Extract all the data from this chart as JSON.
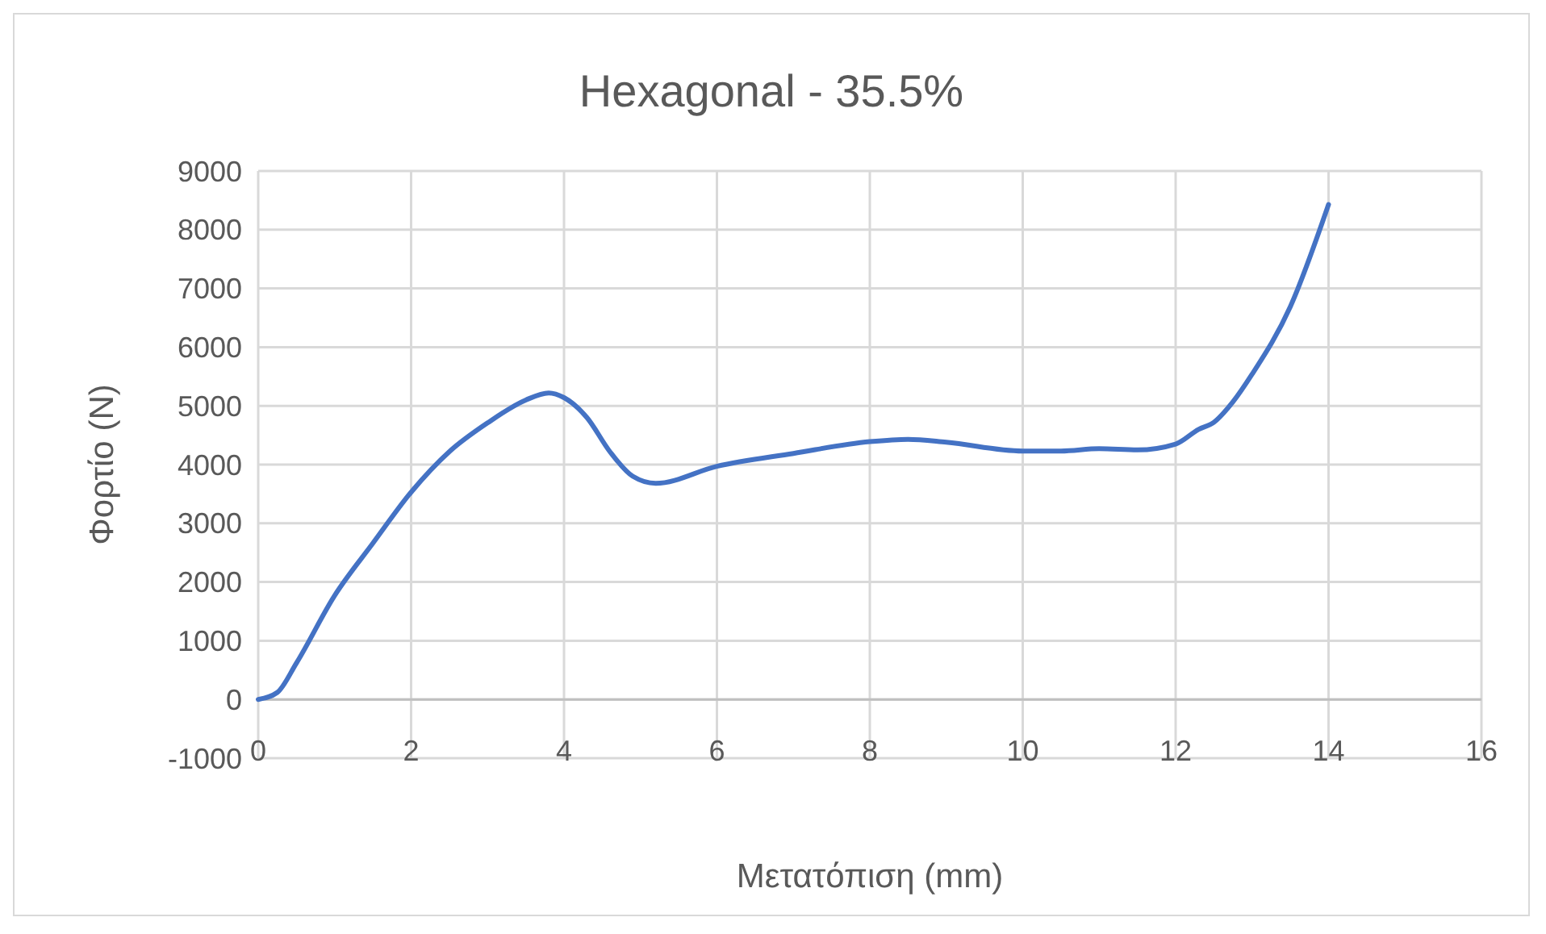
{
  "chart_data": {
    "type": "line",
    "title": "Hexagonal - 35.5%",
    "xlabel": "Μετατόπιση (mm)",
    "ylabel": "Φορτίο (N)",
    "xlim": [
      0,
      16
    ],
    "xticks": [
      0,
      2,
      4,
      6,
      8,
      10,
      12,
      14,
      16
    ],
    "ylim": [
      -1000,
      9000
    ],
    "yticks": [
      -1000,
      0,
      1000,
      2000,
      3000,
      4000,
      5000,
      6000,
      7000,
      8000,
      9000
    ],
    "grid": true,
    "line_style": "solid",
    "series": [
      {
        "color": "#4472c4",
        "x": [
          0,
          0.25,
          0.5,
          1,
          1.5,
          2,
          2.5,
          3,
          3.5,
          3.8,
          4,
          4.3,
          4.6,
          4.9,
          5.2,
          6,
          7,
          8,
          8.5,
          9,
          10,
          10.5,
          11,
          11.5,
          12,
          12.3,
          12.5,
          12.75,
          13,
          13.5,
          14
        ],
        "values": [
          0,
          120,
          620,
          1770,
          2660,
          3530,
          4220,
          4710,
          5100,
          5220,
          5140,
          4800,
          4220,
          3800,
          3680,
          3970,
          4190,
          4390,
          4430,
          4380,
          4230,
          4230,
          4270,
          4250,
          4350,
          4600,
          4720,
          5070,
          5540,
          6690,
          8430
        ]
      }
    ]
  }
}
